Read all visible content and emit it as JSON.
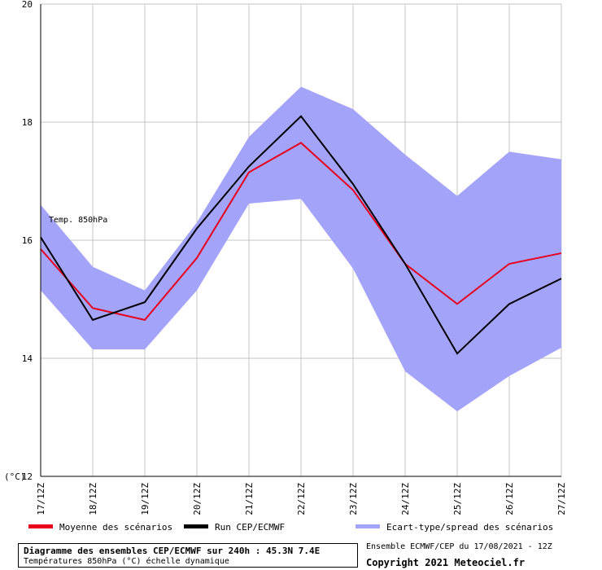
{
  "chart_data": {
    "type": "line",
    "categories": [
      "17/12Z",
      "18/12Z",
      "19/12Z",
      "20/12Z",
      "21/12Z",
      "22/12Z",
      "23/12Z",
      "24/12Z",
      "25/12Z",
      "26/12Z",
      "27/12Z"
    ],
    "ylim": [
      12,
      20
    ],
    "yticks": [
      12,
      14,
      16,
      18,
      20
    ],
    "ylabel": "(°C)",
    "annotation": "Temp. 850hPa",
    "grid": true,
    "series": [
      {
        "name": "Moyenne des scénarios",
        "color": "#e8001c",
        "values": [
          15.85,
          14.85,
          14.65,
          15.7,
          17.15,
          17.65,
          16.85,
          15.6,
          14.92,
          15.6,
          15.78
        ]
      },
      {
        "name": "Run CEP/ECMWF",
        "color": "#000000",
        "values": [
          16.05,
          14.65,
          14.95,
          16.2,
          17.25,
          18.1,
          16.95,
          15.6,
          14.08,
          14.92,
          15.35
        ]
      }
    ],
    "band": {
      "name": "Ecart-type/spread des scénarios",
      "color": "#a3a3f9",
      "upper": [
        16.6,
        15.55,
        15.15,
        16.3,
        17.75,
        18.6,
        18.22,
        17.45,
        16.75,
        17.5,
        17.37
      ],
      "lower": [
        15.15,
        14.15,
        14.15,
        15.15,
        16.62,
        16.7,
        15.52,
        13.78,
        13.1,
        13.7,
        14.18
      ]
    }
  },
  "footer": {
    "title_line1": "Diagramme des ensembles CEP/ECMWF sur 240h : 45.3N 7.4E",
    "title_line2": "Températures 850hPa (°C) échelle dynamique",
    "info_line1": "Ensemble ECMWF/CEP du 17/08/2021 - 12Z",
    "info_line2": "Copyright 2021 Meteociel.fr"
  }
}
